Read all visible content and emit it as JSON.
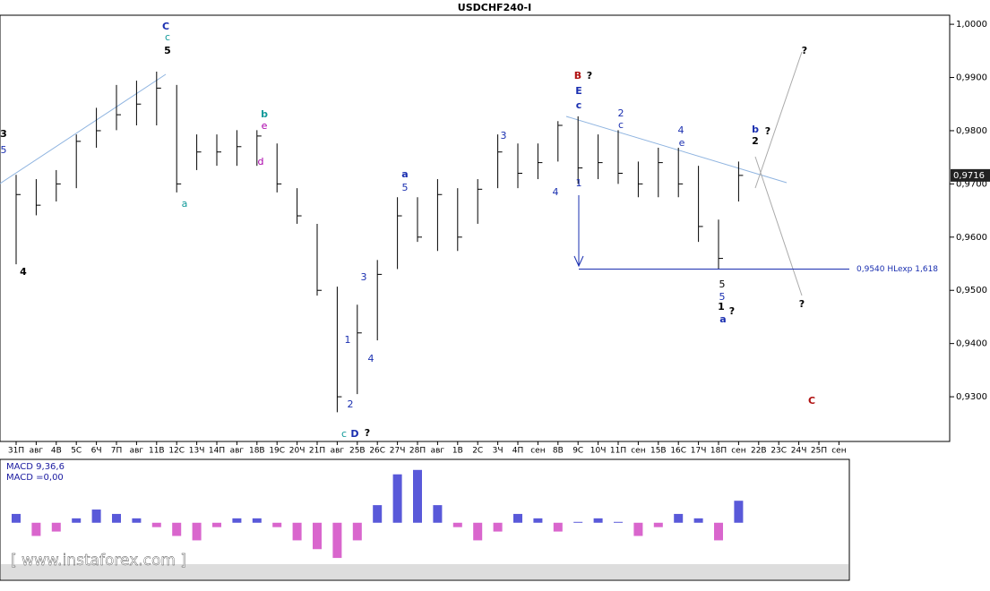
{
  "chart_data": {
    "type": "ohlc",
    "title": "USDCHF240-I",
    "categories": [
      "31П",
      "авг",
      "4В",
      "5С",
      "6Ч",
      "7П",
      "авг",
      "11В",
      "12С",
      "13Ч",
      "14П",
      "авг",
      "18В",
      "19С",
      "20Ч",
      "21П",
      "авг",
      "25В",
      "26С",
      "27Ч",
      "28П",
      "авг",
      "1В",
      "2С",
      "3Ч",
      "4П",
      "сен",
      "8В",
      "9С",
      "10Ч",
      "11П",
      "сен",
      "15В",
      "16С",
      "17Ч",
      "18П",
      "сен",
      "22В",
      "23С",
      "24Ч",
      "25П",
      "сен"
    ],
    "high": [
      0.9717,
      0.9709,
      0.9726,
      0.9793,
      0.9843,
      0.9886,
      0.9894,
      0.9911,
      0.9886,
      0.9793,
      0.9793,
      0.9801,
      0.9801,
      0.9776,
      0.9692,
      0.9625,
      0.9507,
      0.9473,
      0.9557,
      0.9675,
      0.9675,
      0.9709,
      0.9692,
      0.9709,
      0.9793,
      0.9776,
      0.9776,
      0.9818,
      0.9827,
      0.9793,
      0.9801,
      0.9742,
      0.9768,
      0.9768,
      0.9734,
      0.9633,
      0.9742,
      null,
      null,
      null,
      null,
      null
    ],
    "low": [
      0.9549,
      0.9641,
      0.9667,
      0.9692,
      0.9768,
      0.9801,
      0.981,
      0.981,
      0.9684,
      0.9726,
      0.9734,
      0.9734,
      0.9734,
      0.9684,
      0.9625,
      0.949,
      0.9271,
      0.9305,
      0.9406,
      0.954,
      0.9591,
      0.9574,
      0.9574,
      0.9625,
      0.9692,
      0.9692,
      0.9709,
      0.9742,
      0.97,
      0.9709,
      0.97,
      0.9675,
      0.9675,
      0.9675,
      0.9591,
      0.954,
      0.9667,
      null,
      null,
      null,
      null,
      null
    ],
    "close": [
      0.968,
      0.966,
      0.97,
      0.978,
      0.98,
      0.983,
      0.985,
      0.988,
      0.97,
      0.976,
      0.976,
      0.977,
      0.979,
      0.97,
      0.964,
      0.95,
      0.93,
      0.942,
      0.953,
      0.964,
      0.96,
      0.968,
      0.96,
      0.969,
      0.976,
      0.972,
      0.974,
      0.981,
      0.973,
      0.974,
      0.972,
      0.97,
      0.974,
      0.97,
      0.962,
      0.956,
      0.9716,
      null,
      null,
      null,
      null,
      null
    ],
    "ylim": [
      0.9216,
      1.0017
    ],
    "yticks": [
      {
        "value": 1.0,
        "label": "1,0000"
      },
      {
        "value": 0.99,
        "label": "0,9900"
      },
      {
        "value": 0.98,
        "label": "0,9800"
      },
      {
        "value": 0.97,
        "label": "0,9700"
      },
      {
        "value": 0.96,
        "label": "0,9600"
      },
      {
        "value": 0.95,
        "label": "0,9500"
      },
      {
        "value": 0.94,
        "label": "0,9400"
      },
      {
        "value": 0.93,
        "label": "0,9300"
      }
    ],
    "last_price": {
      "value": 0.9716,
      "label": "0,9716"
    },
    "level": {
      "value": 0.954,
      "label": "0,9540 HLexp 1,618"
    },
    "macd_title": "MACD 9,36,6",
    "macd_value": "MACD =0,00",
    "macd": [
      0.001,
      -0.0015,
      -0.001,
      0.0005,
      0.0015,
      0.001,
      0.0005,
      -0.0005,
      -0.0015,
      -0.002,
      -0.0005,
      0.0005,
      0.0005,
      -0.0005,
      -0.002,
      -0.003,
      -0.004,
      -0.002,
      0.002,
      0.0055,
      0.006,
      0.002,
      -0.0005,
      -0.002,
      -0.001,
      0.001,
      0.0005,
      -0.001,
      0.0001,
      0.0005,
      0.0001,
      -0.0015,
      -0.0005,
      0.001,
      0.0005,
      -0.002,
      0.0025,
      null,
      null,
      null,
      null,
      null
    ],
    "macd_lim": [
      -0.0045,
      0.0072
    ],
    "annotations": [
      "C",
      "c",
      "5",
      "B",
      "?",
      "E",
      "c",
      "D",
      "c",
      "?",
      "a",
      "1",
      "?",
      "b",
      "2",
      "?",
      "?",
      "?",
      "C",
      "a",
      "4",
      "3",
      "5",
      "b",
      "e",
      "d",
      "3",
      "4",
      "1",
      "a",
      "5",
      "3",
      "1",
      "2",
      "4",
      "5",
      "5",
      "4",
      "e",
      "2",
      "c"
    ],
    "watermark": "[ www.instaforex.com ]"
  }
}
